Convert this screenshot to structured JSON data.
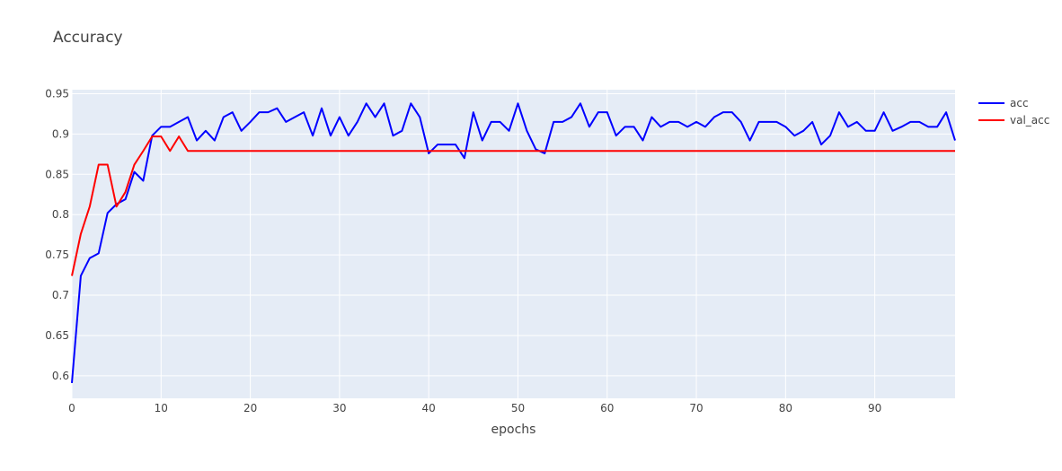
{
  "chart_data": {
    "type": "line",
    "title": "Accuracy",
    "xlabel": "epochs",
    "ylabel": "",
    "xlim": [
      0,
      99
    ],
    "ylim": [
      0.572,
      0.955
    ],
    "x_ticks": [
      0,
      10,
      20,
      30,
      40,
      50,
      60,
      70,
      80,
      90
    ],
    "y_ticks": [
      0.6,
      0.65,
      0.7,
      0.75,
      0.8,
      0.85,
      0.9,
      0.95
    ],
    "y_tick_labels": [
      "0.6",
      "0.65",
      "0.7",
      "0.75",
      "0.8",
      "0.85",
      "0.9",
      "0.95"
    ],
    "grid": true,
    "legend": "top-right",
    "plot_background": "#e5ecf6",
    "series": [
      {
        "name": "acc",
        "color": "#0000ff",
        "values": [
          0.591,
          0.724,
          0.746,
          0.752,
          0.802,
          0.813,
          0.819,
          0.853,
          0.842,
          0.898,
          0.909,
          0.909,
          0.915,
          0.921,
          0.892,
          0.904,
          0.892,
          0.921,
          0.927,
          0.904,
          0.915,
          0.927,
          0.927,
          0.932,
          0.915,
          0.921,
          0.927,
          0.898,
          0.932,
          0.898,
          0.921,
          0.898,
          0.915,
          0.938,
          0.921,
          0.938,
          0.898,
          0.904,
          0.938,
          0.921,
          0.876,
          0.887,
          0.887,
          0.887,
          0.87,
          0.927,
          0.892,
          0.915,
          0.915,
          0.904,
          0.938,
          0.904,
          0.881,
          0.876,
          0.915,
          0.915,
          0.921,
          0.938,
          0.909,
          0.927,
          0.927,
          0.898,
          0.909,
          0.909,
          0.892,
          0.921,
          0.909,
          0.915,
          0.915,
          0.909,
          0.915,
          0.909,
          0.921,
          0.927,
          0.927,
          0.915,
          0.892,
          0.915,
          0.915,
          0.915,
          0.909,
          0.898,
          0.904,
          0.915,
          0.887,
          0.898,
          0.927,
          0.909,
          0.915,
          0.904,
          0.904,
          0.927,
          0.904,
          0.909,
          0.915,
          0.915,
          0.909,
          0.909,
          0.927,
          0.892
        ]
      },
      {
        "name": "val_acc",
        "color": "#ff0000",
        "values": [
          0.724,
          0.776,
          0.81,
          0.862,
          0.862,
          0.81,
          0.828,
          0.862,
          0.879,
          0.897,
          0.897,
          0.879,
          0.897,
          0.879,
          0.879,
          0.879,
          0.879,
          0.879,
          0.879,
          0.879,
          0.879,
          0.879,
          0.879,
          0.879,
          0.879,
          0.879,
          0.879,
          0.879,
          0.879,
          0.879,
          0.879,
          0.879,
          0.879,
          0.879,
          0.879,
          0.879,
          0.879,
          0.879,
          0.879,
          0.879,
          0.879,
          0.879,
          0.879,
          0.879,
          0.879,
          0.879,
          0.879,
          0.879,
          0.879,
          0.879,
          0.879,
          0.879,
          0.879,
          0.879,
          0.879,
          0.879,
          0.879,
          0.879,
          0.879,
          0.879,
          0.879,
          0.879,
          0.879,
          0.879,
          0.879,
          0.879,
          0.879,
          0.879,
          0.879,
          0.879,
          0.879,
          0.879,
          0.879,
          0.879,
          0.879,
          0.879,
          0.879,
          0.879,
          0.879,
          0.879,
          0.879,
          0.879,
          0.879,
          0.879,
          0.879,
          0.879,
          0.879,
          0.879,
          0.879,
          0.879,
          0.879,
          0.879,
          0.879,
          0.879,
          0.879,
          0.879,
          0.879,
          0.879,
          0.879,
          0.879
        ]
      }
    ]
  }
}
